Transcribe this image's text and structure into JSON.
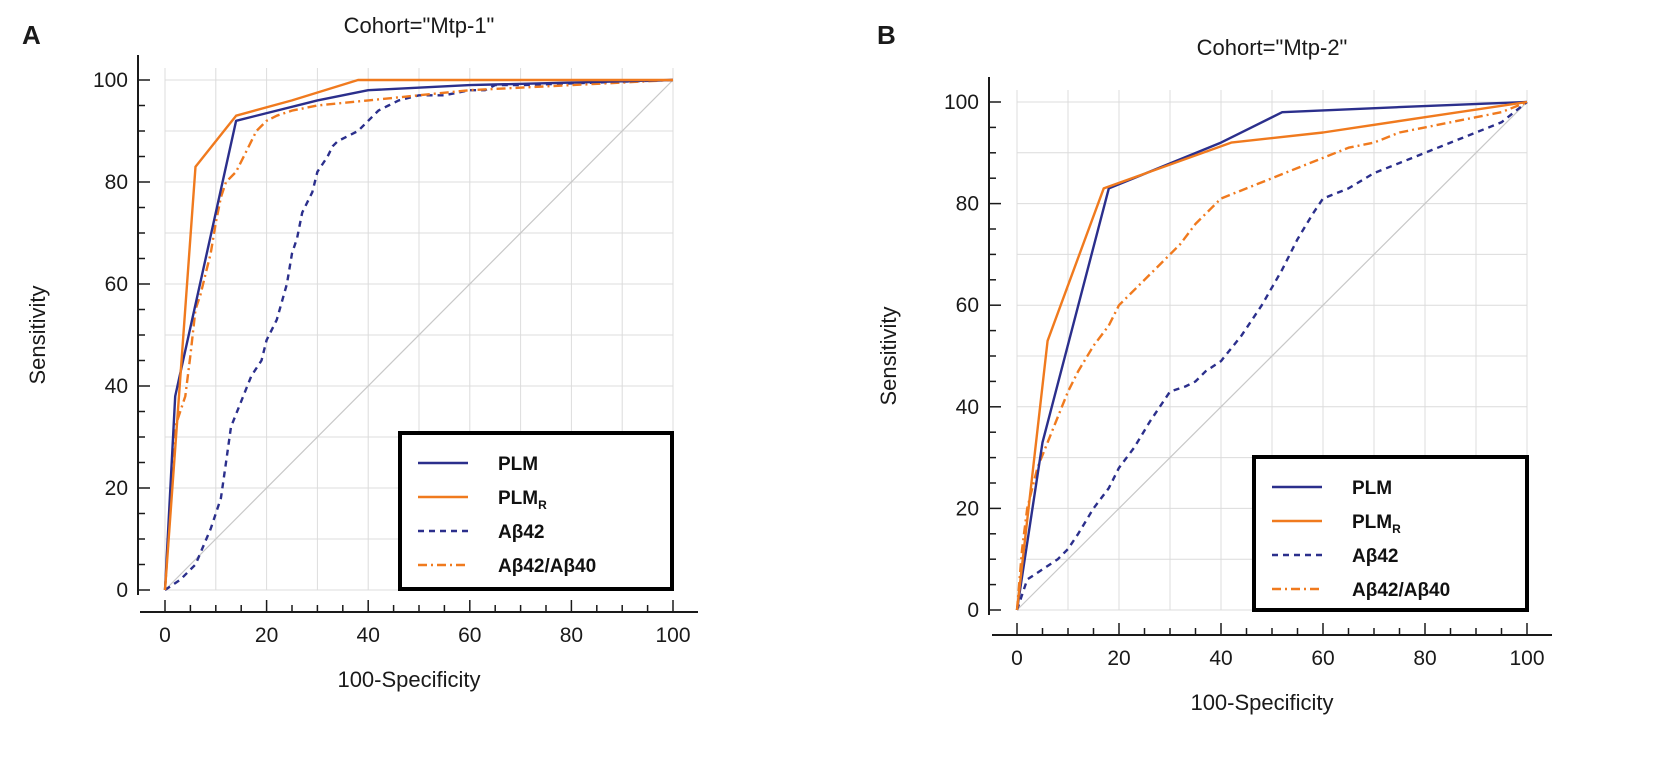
{
  "colors": {
    "PLM": "#2b2f8c",
    "PLMR": "#f07a1e",
    "Ab42": "#2b2f8c",
    "Ab42Ab40": "#f07a1e",
    "grid": "#dcdcdc",
    "diagonal": "#c8c8c8",
    "axis": "#1a1a1a"
  },
  "chart_data": [
    {
      "panel": "A",
      "type": "line",
      "title": "Cohort=\"Mtp-1\"",
      "xlabel": "100-Specificity",
      "ylabel": "Sensitivity",
      "xlim": [
        0,
        100
      ],
      "ylim": [
        0,
        100
      ],
      "xticks": [
        "0",
        "20",
        "40",
        "60",
        "80",
        "100"
      ],
      "yticks": [
        "0",
        "20",
        "40",
        "60",
        "80",
        "100"
      ],
      "legend_position": "bottom-right",
      "legend": [
        {
          "key": "PLM",
          "label": "PLM",
          "sub": ""
        },
        {
          "key": "PLMR",
          "label": "PLM",
          "sub": "R"
        },
        {
          "key": "Ab42",
          "label": "Aβ42",
          "sub": ""
        },
        {
          "key": "Ab42Ab40",
          "label": "Aβ42/Aβ40",
          "sub": ""
        }
      ],
      "series": [
        {
          "key": "PLM",
          "name": "PLM",
          "style": "solid",
          "x": [
            0,
            2,
            14,
            30,
            40,
            60,
            100
          ],
          "y": [
            0,
            38,
            92,
            96,
            98,
            99,
            100
          ]
        },
        {
          "key": "PLMR",
          "name": "PLMR",
          "style": "solid",
          "x": [
            0,
            6,
            14,
            25,
            38,
            100
          ],
          "y": [
            0,
            83,
            93,
            96,
            100,
            100
          ]
        },
        {
          "key": "Ab42",
          "name": "Aβ42",
          "style": "dashed",
          "x": [
            0,
            3,
            6,
            9,
            11,
            12,
            13,
            15,
            17,
            19,
            20,
            22,
            24,
            25,
            26,
            27,
            29,
            30,
            32,
            33,
            34,
            36,
            38,
            40,
            42,
            44,
            46,
            50,
            55,
            60,
            63,
            65,
            70,
            100
          ],
          "y": [
            0,
            2,
            5,
            12,
            18,
            25,
            32,
            37,
            42,
            45,
            49,
            53,
            60,
            66,
            69,
            74,
            78,
            82,
            85,
            87,
            88,
            89,
            90,
            92,
            94,
            95,
            96,
            97,
            97,
            98,
            98,
            99,
            99,
            100
          ]
        },
        {
          "key": "Ab42Ab40",
          "name": "Aβ42/Aβ40",
          "style": "dashdot",
          "x": [
            0,
            1,
            2,
            4,
            5,
            6,
            7,
            8,
            9,
            10,
            11,
            12,
            14,
            16,
            18,
            20,
            22,
            25,
            30,
            40,
            50,
            60,
            100
          ],
          "y": [
            0,
            15,
            32,
            38,
            46,
            55,
            58,
            62,
            66,
            72,
            77,
            80,
            82,
            86,
            90,
            92,
            93,
            94,
            95,
            96,
            97,
            98,
            100
          ]
        }
      ]
    },
    {
      "panel": "B",
      "type": "line",
      "title": "Cohort=\"Mtp-2\"",
      "xlabel": "100-Specificity",
      "ylabel": "Sensitivity",
      "xlim": [
        0,
        100
      ],
      "ylim": [
        0,
        100
      ],
      "xticks": [
        "0",
        "20",
        "40",
        "60",
        "80",
        "100"
      ],
      "yticks": [
        "0",
        "20",
        "40",
        "60",
        "80",
        "100"
      ],
      "legend_position": "bottom-right",
      "legend": [
        {
          "key": "PLM",
          "label": "PLM",
          "sub": ""
        },
        {
          "key": "PLMR",
          "label": "PLM",
          "sub": "R"
        },
        {
          "key": "Ab42",
          "label": "Aβ42",
          "sub": ""
        },
        {
          "key": "Ab42Ab40",
          "label": "Aβ42/Aβ40",
          "sub": ""
        }
      ],
      "series": [
        {
          "key": "PLM",
          "name": "PLM",
          "style": "solid",
          "x": [
            0,
            5,
            18,
            40,
            52,
            75,
            100
          ],
          "y": [
            0,
            33,
            83,
            92,
            98,
            99,
            100
          ]
        },
        {
          "key": "PLMR",
          "name": "PLMR",
          "style": "solid",
          "x": [
            0,
            6,
            17,
            42,
            60,
            80,
            100
          ],
          "y": [
            0,
            53,
            83,
            92,
            94,
            97,
            100
          ]
        },
        {
          "key": "Ab42",
          "name": "Aβ42",
          "style": "dashed",
          "x": [
            0,
            2,
            5,
            8,
            10,
            12,
            15,
            18,
            20,
            23,
            26,
            28,
            30,
            33,
            35,
            37,
            40,
            44,
            48,
            52,
            55,
            58,
            60,
            65,
            70,
            75,
            80,
            85,
            90,
            95,
            100
          ],
          "y": [
            0,
            6,
            8,
            10,
            12,
            15,
            20,
            24,
            28,
            32,
            37,
            40,
            43,
            44,
            45,
            47,
            49,
            54,
            60,
            67,
            73,
            78,
            81,
            83,
            86,
            88,
            90,
            92,
            94,
            96,
            100
          ]
        },
        {
          "key": "Ab42Ab40",
          "name": "Aβ42/Aβ40",
          "style": "dashdot",
          "x": [
            0,
            1,
            2,
            4,
            6,
            8,
            10,
            12,
            15,
            18,
            20,
            24,
            28,
            32,
            35,
            38,
            40,
            45,
            50,
            55,
            60,
            65,
            70,
            75,
            80,
            85,
            90,
            95,
            100
          ],
          "y": [
            0,
            12,
            20,
            28,
            33,
            38,
            43,
            47,
            52,
            56,
            60,
            64,
            68,
            72,
            76,
            79,
            81,
            83,
            85,
            87,
            89,
            91,
            92,
            94,
            95,
            96,
            97,
            98,
            100
          ]
        }
      ]
    }
  ]
}
